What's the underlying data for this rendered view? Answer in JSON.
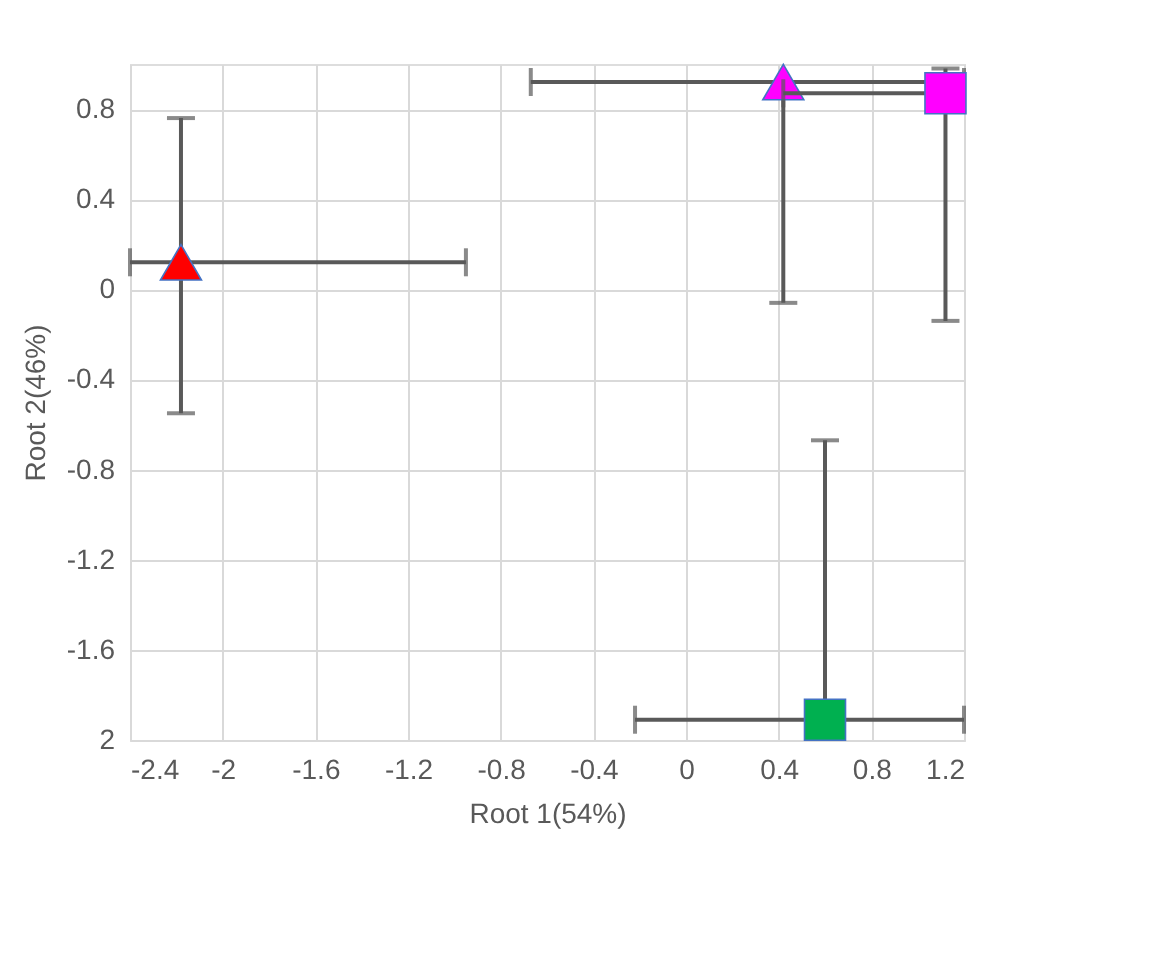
{
  "chart_data": {
    "type": "scatter",
    "xlabel": "Root 1(54%)",
    "ylabel": "Root 2(46%)",
    "xlim": [
      -2.4,
      1.2
    ],
    "xticks": [
      -2.4,
      -2,
      -1.6,
      -1.2,
      -0.8,
      -0.4,
      0,
      0.4,
      0.8,
      1.2
    ],
    "ylim": [
      -2,
      1.0
    ],
    "yticks": [
      {
        "value": -2,
        "label": "2"
      },
      -1.6,
      -1.2,
      -0.8,
      -0.4,
      0,
      0.4,
      0.8
    ],
    "grid": true,
    "series": [
      {
        "color": "#ff0000",
        "marker": "triangle",
        "x": [
          -2.18
        ],
        "values": [
          0.12
        ],
        "errors": [
          [
            -0.55,
            0.76
          ]
        ],
        "xerrors": [
          [
            -2.4,
            -0.95
          ]
        ]
      },
      {
        "color": "#ff00ff",
        "marker": "triangle",
        "x": [
          0.42
        ],
        "values": [
          0.92
        ],
        "errors": [
          [
            -0.06,
            0.92
          ]
        ],
        "xerrors": [
          [
            -0.67,
            1.2
          ]
        ]
      },
      {
        "color": "#ff00ff",
        "marker": "square",
        "x": [
          1.12
        ],
        "values": [
          0.87
        ],
        "errors": [
          [
            -0.14,
            0.98
          ]
        ],
        "xerrors": [
          [
            0.42,
            1.2
          ]
        ]
      },
      {
        "color": "#00b050",
        "marker": "square",
        "x": [
          0.6
        ],
        "values": [
          -1.91
        ],
        "errors": [
          [
            -0.67,
            -1.91
          ]
        ],
        "xerrors": [
          [
            -0.22,
            1.2
          ]
        ]
      }
    ]
  }
}
